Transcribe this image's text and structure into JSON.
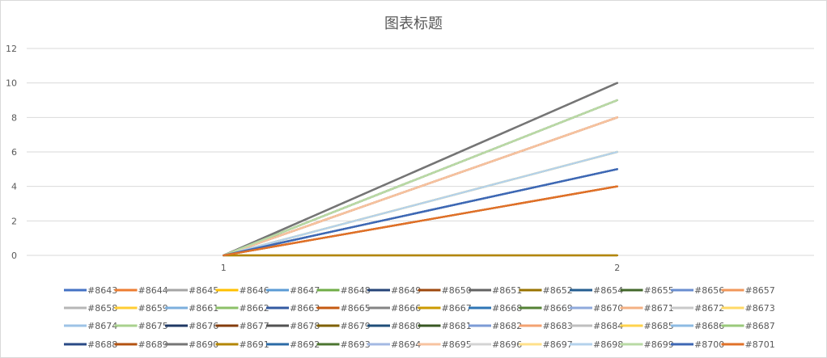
{
  "chart_data": {
    "type": "line",
    "title": "图表标题",
    "xlabel": "",
    "ylabel": "",
    "categories": [
      "1",
      "2"
    ],
    "ylim": [
      0,
      12
    ],
    "yticks": [
      "0",
      "2",
      "4",
      "6",
      "8",
      "10",
      "12"
    ],
    "grid": true,
    "legend_position": "bottom",
    "series": [
      {
        "name": "#8643",
        "color": "#4472c4",
        "values": [
          0,
          5
        ]
      },
      {
        "name": "#8644",
        "color": "#ed7d31",
        "values": [
          0,
          4
        ]
      },
      {
        "name": "#8645",
        "color": "#a5a5a5",
        "values": [
          0,
          9
        ]
      },
      {
        "name": "#8646",
        "color": "#ffc000",
        "values": [
          0,
          6
        ]
      },
      {
        "name": "#8647",
        "color": "#5b9bd5",
        "values": [
          0,
          8
        ]
      },
      {
        "name": "#8648",
        "color": "#70ad47",
        "values": [
          0,
          9
        ]
      },
      {
        "name": "#8649",
        "color": "#264478",
        "values": [
          0,
          5
        ]
      },
      {
        "name": "#8650",
        "color": "#9e480e",
        "values": [
          0,
          8
        ]
      },
      {
        "name": "#8651",
        "color": "#636363",
        "values": [
          0,
          10
        ]
      },
      {
        "name": "#8652",
        "color": "#997300",
        "values": [
          0,
          0
        ]
      },
      {
        "name": "#8654",
        "color": "#255e91",
        "values": [
          0,
          5
        ]
      },
      {
        "name": "#8655",
        "color": "#43682b",
        "values": [
          0,
          9
        ]
      },
      {
        "name": "#8656",
        "color": "#698ed0",
        "values": [
          0,
          5
        ]
      },
      {
        "name": "#8657",
        "color": "#f1975a",
        "values": [
          0,
          8
        ]
      },
      {
        "name": "#8658",
        "color": "#b7b7b7",
        "values": [
          0,
          9
        ]
      },
      {
        "name": "#8659",
        "color": "#ffcd33",
        "values": [
          0,
          6
        ]
      },
      {
        "name": "#8661",
        "color": "#7cafdd",
        "values": [
          0,
          6
        ]
      },
      {
        "name": "#8662",
        "color": "#8cc168",
        "values": [
          0,
          9
        ]
      },
      {
        "name": "#8663",
        "color": "#335aa1",
        "values": [
          0,
          5
        ]
      },
      {
        "name": "#8665",
        "color": "#c55a11",
        "values": [
          0,
          4
        ]
      },
      {
        "name": "#8666",
        "color": "#848484",
        "values": [
          0,
          10
        ]
      },
      {
        "name": "#8667",
        "color": "#cc9a00",
        "values": [
          0,
          6
        ]
      },
      {
        "name": "#8668",
        "color": "#2e75b6",
        "values": [
          0,
          5
        ]
      },
      {
        "name": "#8669",
        "color": "#548235",
        "values": [
          0,
          9
        ]
      },
      {
        "name": "#8670",
        "color": "#8faadc",
        "values": [
          0,
          5
        ]
      },
      {
        "name": "#8671",
        "color": "#f4b183",
        "values": [
          0,
          8
        ]
      },
      {
        "name": "#8672",
        "color": "#c9c9c9",
        "values": [
          0,
          9
        ]
      },
      {
        "name": "#8673",
        "color": "#ffd966",
        "values": [
          0,
          6
        ]
      },
      {
        "name": "#8674",
        "color": "#9dc3e6",
        "values": [
          0,
          6
        ]
      },
      {
        "name": "#8675",
        "color": "#a9d18e",
        "values": [
          0,
          9
        ]
      },
      {
        "name": "#8676",
        "color": "#1f3864",
        "values": [
          0,
          5
        ]
      },
      {
        "name": "#8677",
        "color": "#843c0c",
        "values": [
          0,
          8
        ]
      },
      {
        "name": "#8678",
        "color": "#525252",
        "values": [
          0,
          10
        ]
      },
      {
        "name": "#8679",
        "color": "#7f6000",
        "values": [
          0,
          0
        ]
      },
      {
        "name": "#8680",
        "color": "#1f4e79",
        "values": [
          0,
          5
        ]
      },
      {
        "name": "#8681",
        "color": "#385723",
        "values": [
          0,
          9
        ]
      },
      {
        "name": "#8682",
        "color": "#7c9bd6",
        "values": [
          0,
          5
        ]
      },
      {
        "name": "#8683",
        "color": "#f3a271",
        "values": [
          0,
          8
        ]
      },
      {
        "name": "#8684",
        "color": "#bfbfbf",
        "values": [
          0,
          9
        ]
      },
      {
        "name": "#8685",
        "color": "#ffd34d",
        "values": [
          0,
          6
        ]
      },
      {
        "name": "#8686",
        "color": "#8dbbe3",
        "values": [
          0,
          6
        ]
      },
      {
        "name": "#8687",
        "color": "#9ac97b",
        "values": [
          0,
          9
        ]
      },
      {
        "name": "#8688",
        "color": "#2a4a85",
        "values": [
          0,
          5
        ]
      },
      {
        "name": "#8689",
        "color": "#b35210",
        "values": [
          0,
          4
        ]
      },
      {
        "name": "#8690",
        "color": "#767676",
        "values": [
          0,
          10
        ]
      },
      {
        "name": "#8691",
        "color": "#b38600",
        "values": [
          0,
          0
        ]
      },
      {
        "name": "#8692",
        "color": "#2b6aa6",
        "values": [
          0,
          5
        ]
      },
      {
        "name": "#8693",
        "color": "#4c7530",
        "values": [
          0,
          9
        ]
      },
      {
        "name": "#8694",
        "color": "#a3b9e3",
        "values": [
          0,
          5
        ]
      },
      {
        "name": "#8695",
        "color": "#f7c3a0",
        "values": [
          0,
          8
        ]
      },
      {
        "name": "#8696",
        "color": "#d4d4d4",
        "values": [
          0,
          9
        ]
      },
      {
        "name": "#8697",
        "color": "#ffe08a",
        "values": [
          0,
          6
        ]
      },
      {
        "name": "#8698",
        "color": "#b4d2ec",
        "values": [
          0,
          6
        ]
      },
      {
        "name": "#8699",
        "color": "#b9daa4",
        "values": [
          0,
          9
        ]
      },
      {
        "name": "#8700",
        "color": "#3d67b4",
        "values": [
          0,
          5
        ]
      },
      {
        "name": "#8701",
        "color": "#e07128",
        "values": [
          0,
          4
        ]
      }
    ]
  }
}
